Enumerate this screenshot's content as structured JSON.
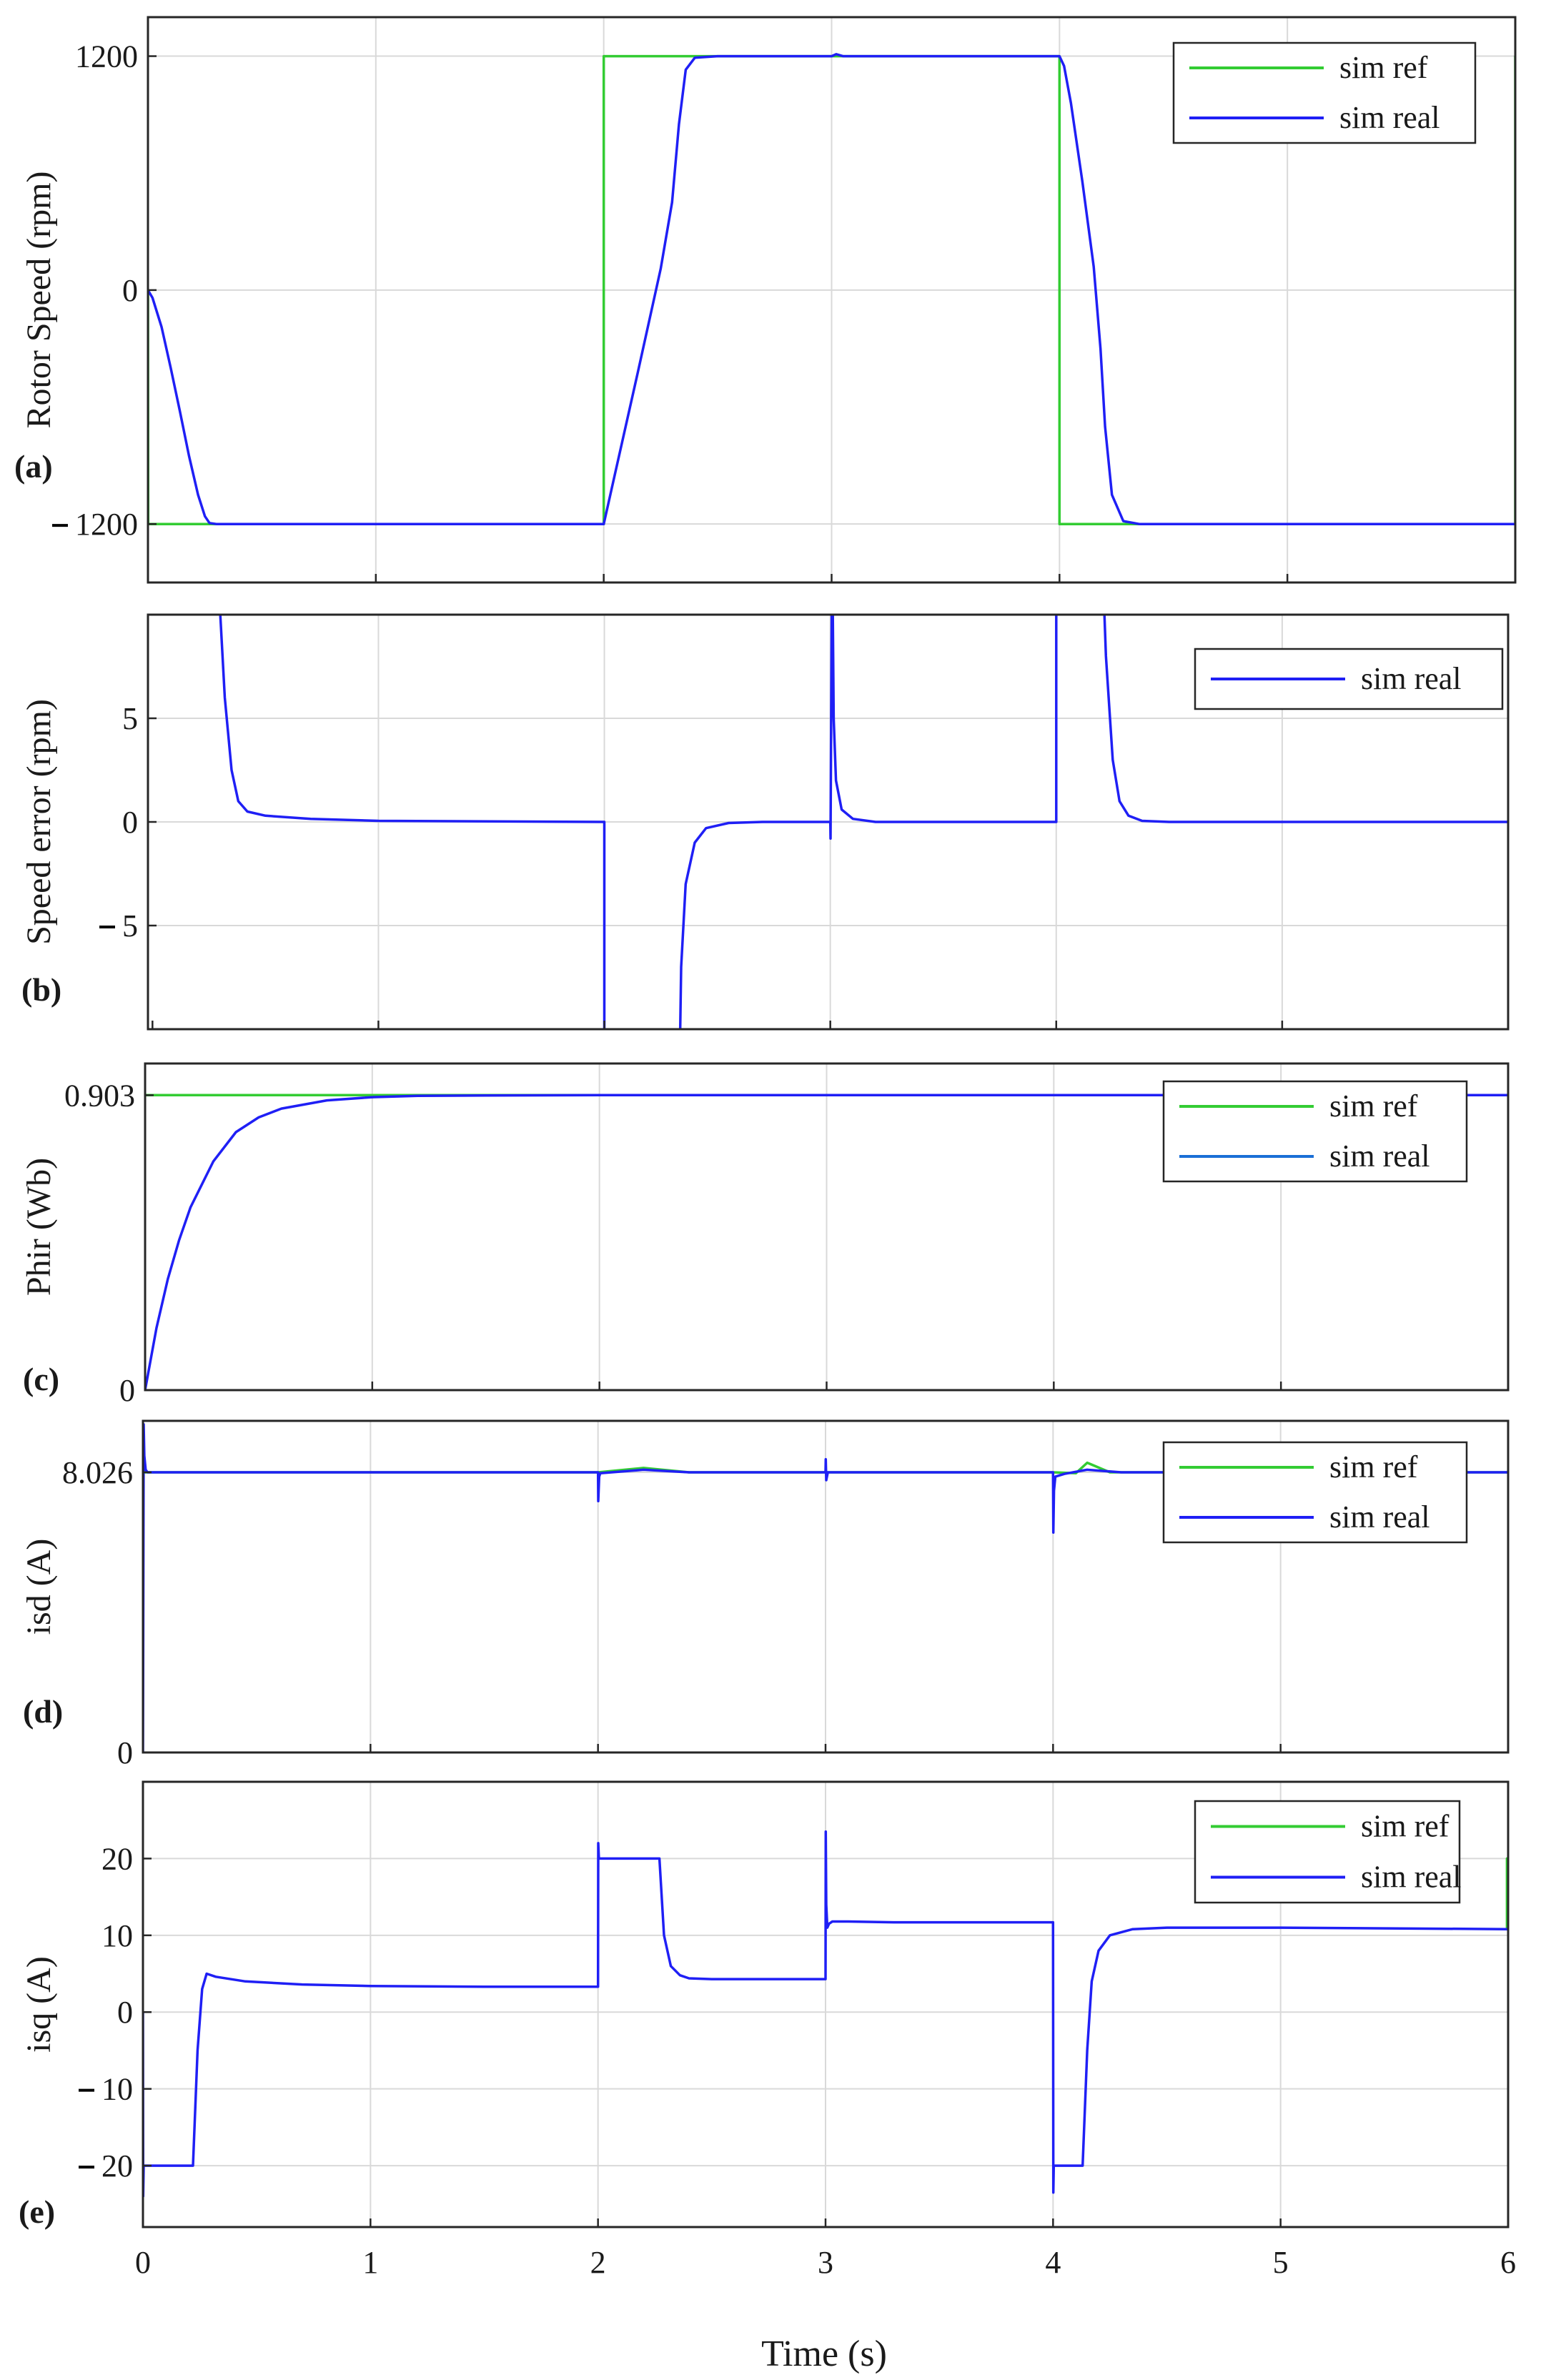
{
  "xlabel": "Time (s)",
  "x_ticks": [
    "0",
    "1",
    "2",
    "3",
    "4",
    "5",
    "6"
  ],
  "colors": {
    "ref": "#33cc33",
    "real": "#1f1ff5",
    "real_teal": "#1a6fd6",
    "grid": "#d9d9d9",
    "frame": "#262626"
  },
  "chart_data": [
    {
      "type": "line",
      "panel": "(a)",
      "ylabel": "Rotor Speed (rpm)",
      "xlim": [
        0,
        6
      ],
      "ylim": [
        -1500,
        1400
      ],
      "yticks": [
        {
          "value": -1200,
          "label": "1200",
          "negative": true
        },
        {
          "value": 0,
          "label": "0",
          "negative": false
        },
        {
          "value": 1200,
          "label": "1200",
          "negative": false
        }
      ],
      "legend": [
        "sim ref",
        "sim real"
      ],
      "series": [
        {
          "name": "sim ref",
          "color": "ref",
          "x": [
            0,
            0.001,
            2.0,
            2.0,
            4.0,
            4.0,
            6.0,
            6.0
          ],
          "y": [
            0,
            -1200,
            -1200,
            1200,
            1200,
            -1200,
            -1200,
            1200
          ]
        },
        {
          "name": "sim real",
          "color": "real",
          "x": [
            0,
            0.02,
            0.06,
            0.1,
            0.14,
            0.18,
            0.22,
            0.25,
            0.27,
            0.3,
            0.5,
            2.0,
            2.05,
            2.15,
            2.25,
            2.3,
            2.33,
            2.36,
            2.4,
            2.5,
            3.0,
            3.02,
            3.05,
            4.0,
            4.02,
            4.05,
            4.1,
            4.15,
            4.18,
            4.2,
            4.23,
            4.28,
            4.35,
            4.6,
            6.0
          ],
          "y": [
            0,
            -40,
            -190,
            -400,
            -620,
            -850,
            -1050,
            -1160,
            -1195,
            -1200,
            -1200,
            -1200,
            -940,
            -420,
            110,
            450,
            850,
            1130,
            1192,
            1200,
            1200,
            1210,
            1200,
            1200,
            1150,
            960,
            560,
            120,
            -300,
            -700,
            -1050,
            -1185,
            -1200,
            -1200,
            -1200
          ]
        }
      ]
    },
    {
      "type": "line",
      "panel": "(b)",
      "ylabel": "Speed error (rpm)",
      "xlim": [
        -0.02,
        6
      ],
      "ylim": [
        -10,
        10
      ],
      "yticks": [
        {
          "value": -5,
          "label": "5",
          "negative": true
        },
        {
          "value": 0,
          "label": "0",
          "negative": false
        },
        {
          "value": 5,
          "label": "5",
          "negative": false
        }
      ],
      "legend": [
        "sim real"
      ],
      "series": [
        {
          "name": "sim real",
          "color": "real",
          "x": [
            0.3,
            0.32,
            0.35,
            0.38,
            0.42,
            0.5,
            0.7,
            1.0,
            2.0,
            2.0,
            2.33,
            2.34,
            2.36,
            2.4,
            2.45,
            2.55,
            2.7,
            3.0,
            3.001,
            3.008,
            3.015,
            3.025,
            3.05,
            3.1,
            3.2,
            4.0,
            4.0,
            4.2,
            4.22,
            4.25,
            4.28,
            4.32,
            4.38,
            4.5,
            6.0
          ],
          "y": [
            10,
            6,
            2.5,
            1.0,
            0.5,
            0.3,
            0.15,
            0.05,
            0,
            -15,
            -15,
            -7,
            -3,
            -1,
            -0.3,
            -0.05,
            0,
            0,
            -0.8,
            15,
            5,
            2,
            0.6,
            0.15,
            0,
            0,
            15,
            15,
            8,
            3,
            1,
            0.3,
            0.05,
            0,
            0
          ]
        }
      ]
    },
    {
      "type": "line",
      "panel": "(c)",
      "ylabel": "Phir (Wb)",
      "xlim": [
        0,
        6
      ],
      "ylim": [
        0,
        1.0
      ],
      "yticks": [
        {
          "value": 0,
          "label": "0",
          "negative": false
        },
        {
          "value": 0.903,
          "label": "0.903",
          "negative": false
        }
      ],
      "legend": [
        "sim ref",
        "sim real"
      ],
      "series": [
        {
          "name": "sim ref",
          "color": "ref",
          "x": [
            0,
            6
          ],
          "y": [
            0.903,
            0.903
          ]
        },
        {
          "name": "sim real",
          "color": "real",
          "x": [
            0,
            0.05,
            0.1,
            0.15,
            0.2,
            0.3,
            0.4,
            0.5,
            0.6,
            0.8,
            1.0,
            1.2,
            1.5,
            2.0,
            3.0,
            4.0,
            6.0
          ],
          "y": [
            0,
            0.19,
            0.34,
            0.46,
            0.56,
            0.7,
            0.79,
            0.835,
            0.862,
            0.887,
            0.897,
            0.901,
            0.902,
            0.903,
            0.903,
            0.903,
            0.903
          ]
        }
      ]
    },
    {
      "type": "line",
      "panel": "(d)",
      "ylabel": "isd (A)",
      "xlim": [
        0,
        6
      ],
      "ylim": [
        0,
        9.5
      ],
      "yticks": [
        {
          "value": 0,
          "label": "0",
          "negative": false
        },
        {
          "value": 8.026,
          "label": "8.026",
          "negative": false
        }
      ],
      "legend": [
        "sim ref",
        "sim real"
      ],
      "series": [
        {
          "name": "sim ref",
          "color": "ref",
          "x": [
            0,
            2.0,
            2.2,
            2.4,
            4.0,
            4.1,
            4.15,
            4.25,
            6.0
          ],
          "y": [
            8.026,
            8.026,
            8.15,
            8.026,
            8.026,
            8.0,
            8.3,
            8.026,
            8.026
          ]
        },
        {
          "name": "sim real",
          "color": "real",
          "x": [
            0,
            0.003,
            0.006,
            0.012,
            0.02,
            0.05,
            2.0,
            2.001,
            2.005,
            2.01,
            2.05,
            2.2,
            2.4,
            3.0,
            3.001,
            3.003,
            3.01,
            4.0,
            4.001,
            4.004,
            4.01,
            4.05,
            4.15,
            4.3,
            6.0
          ],
          "y": [
            0,
            9.4,
            8.5,
            8.1,
            8.026,
            8.026,
            8.026,
            7.2,
            7.9,
            8.0,
            8.02,
            8.1,
            8.026,
            8.026,
            8.4,
            7.8,
            8.026,
            8.026,
            6.3,
            7.5,
            7.9,
            7.98,
            8.1,
            8.026,
            8.026
          ]
        }
      ]
    },
    {
      "type": "line",
      "panel": "(e)",
      "ylabel": "isq (A)",
      "xlim": [
        0,
        6
      ],
      "ylim": [
        -28,
        30
      ],
      "yticks": [
        {
          "value": -20,
          "label": "20",
          "negative": true
        },
        {
          "value": -10,
          "label": "10",
          "negative": true
        },
        {
          "value": 0,
          "label": "0",
          "negative": false
        },
        {
          "value": 10,
          "label": "10",
          "negative": false
        },
        {
          "value": 20,
          "label": "20",
          "negative": false
        }
      ],
      "legend": [
        "sim ref",
        "sim real"
      ],
      "series": [
        {
          "name": "sim ref",
          "color": "ref",
          "x": [
            5.995,
            5.995,
            6.0
          ],
          "y": [
            10.8,
            20,
            20
          ]
        },
        {
          "name": "sim real",
          "color": "real",
          "x": [
            0,
            0.001,
            0.003,
            0.01,
            0.22,
            0.24,
            0.26,
            0.28,
            0.32,
            0.45,
            0.7,
            1.0,
            1.5,
            2.0,
            2.001,
            2.004,
            2.01,
            2.27,
            2.29,
            2.32,
            2.36,
            2.4,
            2.5,
            3.0,
            3.001,
            3.003,
            3.008,
            3.015,
            3.03,
            3.1,
            3.3,
            4.0,
            4.001,
            4.003,
            4.01,
            4.13,
            4.15,
            4.17,
            4.2,
            4.25,
            4.35,
            4.5,
            5.0,
            6.0
          ],
          "y": [
            0,
            -24,
            -20,
            -20,
            -20,
            -5,
            3,
            5,
            4.6,
            4.0,
            3.6,
            3.4,
            3.3,
            3.3,
            22,
            20,
            20,
            20,
            10,
            6,
            4.8,
            4.4,
            4.3,
            4.3,
            23.5,
            14,
            11,
            11.5,
            11.8,
            11.8,
            11.7,
            11.7,
            -23.5,
            -20,
            -20,
            -20,
            -5,
            4,
            8,
            10,
            10.8,
            11.0,
            11.0,
            10.8
          ]
        }
      ]
    }
  ]
}
